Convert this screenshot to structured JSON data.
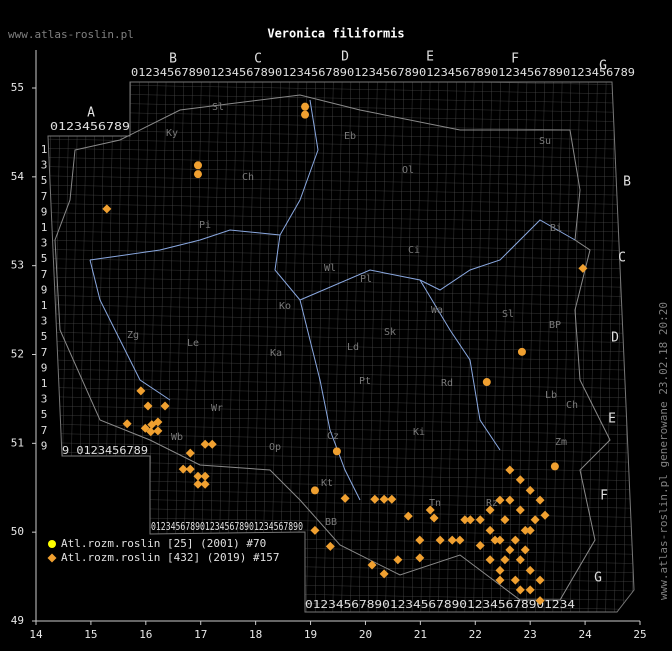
{
  "chart_data": {
    "type": "scatter",
    "title": "Veronica filiformis",
    "site": "www.atlas-roslin.pl",
    "footer": "www.atlas-roslin.pl generowane 23.02.18 20:20",
    "xlim": [
      14,
      25
    ],
    "ylim": [
      49,
      55
    ],
    "xticks": [
      14,
      15,
      16,
      17,
      18,
      19,
      20,
      21,
      22,
      23,
      24,
      25
    ],
    "yticks": [
      49,
      50,
      51,
      52,
      53,
      54,
      55
    ],
    "grid_letters": [
      "A",
      "B",
      "C",
      "D",
      "E",
      "F",
      "G",
      "B",
      "C",
      "D",
      "E",
      "F",
      "G"
    ],
    "grid_digits": [
      "0123456789012345678901234567890123456789012345678901234567890123456789",
      "0123456789",
      "9 0123456789",
      "0123456789012345678901234567890",
      "01234567890123456789012345678901234",
      "13579135791357913579"
    ],
    "region_labels": [
      "Sl",
      "Ky",
      "Ch",
      "Pi",
      "Eb",
      "Ol",
      "Su",
      "Bi",
      "Ci",
      "Wl",
      "Pl",
      "Ko",
      "Zg",
      "Le",
      "Ka",
      "Ld",
      "Sk",
      "Wa",
      "Sl",
      "BP",
      "Pt",
      "Rd",
      "Lb",
      "Ch",
      "Wr",
      "Wb",
      "Op",
      "Cz",
      "Ki",
      "Zm",
      "Kt",
      "BB",
      "Tn",
      "Rz"
    ],
    "series": [
      {
        "name": "Atl.rozm.roslin [25] (2001) #70",
        "color": "#f0a030",
        "legend_color": "#ffff00",
        "marker": "circle",
        "x": [
          16.95,
          16.95,
          18.9,
          18.9,
          22.85,
          22.21,
          19.48,
          19.08,
          23.45
        ],
        "y": [
          54.13,
          54.03,
          54.79,
          54.7,
          52.03,
          51.69,
          50.91,
          50.47,
          50.74
        ]
      },
      {
        "name": "Atl.rozm.roslin [432] (2019) #157",
        "color": "#f0a030",
        "legend_color": "#f0a030",
        "marker": "diamond",
        "x": [
          15.29,
          23.96,
          15.91,
          16.04,
          16.35,
          15.66,
          15.99,
          16.11,
          16.22,
          16.22,
          16.09,
          16.81,
          16.68,
          16.81,
          16.95,
          17.08,
          17.08,
          16.95,
          17.08,
          17.21,
          19.36,
          19.63,
          20.17,
          20.34,
          20.48,
          20.12,
          20.34,
          20.59,
          20.99,
          21.18,
          21.25,
          20.78,
          20.99,
          21.36,
          21.58,
          21.91,
          22.09,
          22.27,
          22.45,
          22.63,
          22.82,
          23.0,
          22.82,
          23.0,
          23.18,
          22.63,
          22.82,
          23.0,
          23.18,
          23.27,
          23.09,
          22.45,
          22.27,
          22.63,
          22.82,
          22.73,
          22.45,
          22.27,
          22.09,
          22.54,
          22.91,
          22.73,
          22.36,
          22.91,
          23.0,
          23.18,
          22.45,
          21.81,
          22.54,
          21.72,
          19.08
        ],
        "y": [
          53.64,
          52.97,
          51.59,
          51.42,
          51.42,
          51.22,
          51.17,
          51.21,
          51.24,
          51.14,
          51.13,
          50.89,
          50.71,
          50.71,
          50.63,
          50.63,
          50.54,
          50.54,
          50.99,
          50.99,
          49.84,
          50.38,
          50.37,
          50.37,
          50.37,
          49.63,
          49.53,
          49.69,
          49.71,
          50.25,
          50.16,
          50.18,
          49.91,
          49.91,
          49.91,
          50.14,
          50.14,
          50.02,
          49.91,
          49.8,
          49.69,
          49.57,
          49.35,
          49.35,
          49.23,
          50.7,
          50.59,
          50.47,
          50.36,
          50.19,
          50.14,
          50.36,
          50.25,
          50.36,
          50.25,
          49.46,
          49.57,
          49.69,
          49.85,
          50.14,
          50.02,
          49.91,
          49.91,
          49.8,
          50.02,
          49.46,
          49.46,
          50.14,
          49.69,
          49.91,
          50.02
        ]
      }
    ]
  }
}
